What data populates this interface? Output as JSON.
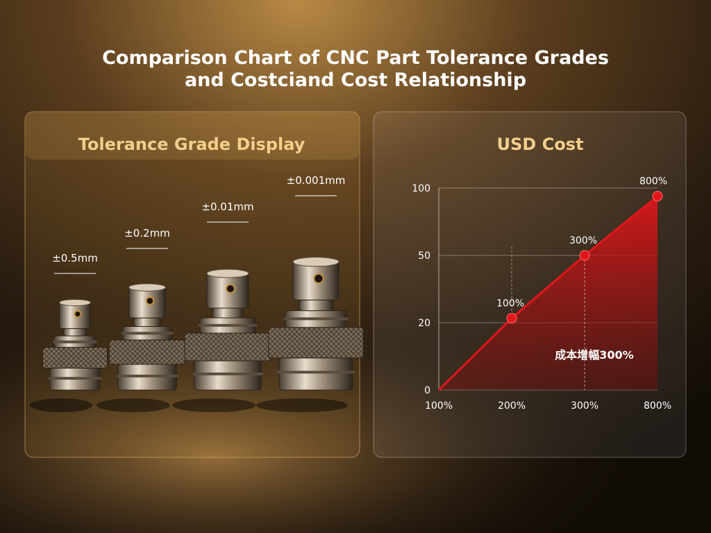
{
  "title_lines": [
    "Comparison Chart of CNC Part Tolerance Grades",
    "and Costciand Cost Relationship"
  ],
  "left_panel": {
    "title": "Tolerance Grade Display",
    "parts": [
      {
        "label": "±0.5mm"
      },
      {
        "label": "±0.2mm"
      },
      {
        "label": "±0.01mm"
      },
      {
        "label": "±0.001mm"
      }
    ]
  },
  "chart_data": {
    "type": "area",
    "title": "USD Cost",
    "categories": [
      "100%",
      "200%",
      "300%",
      "800%"
    ],
    "values": [
      0,
      22,
      50,
      94
    ],
    "point_labels": [
      null,
      "100%",
      "300%",
      "800%"
    ],
    "color": "#e3161a",
    "ylim": [
      0,
      100
    ],
    "yticks": [
      0,
      20,
      50,
      100
    ],
    "grid": true,
    "annotations": [
      "成本增幅300%"
    ]
  }
}
